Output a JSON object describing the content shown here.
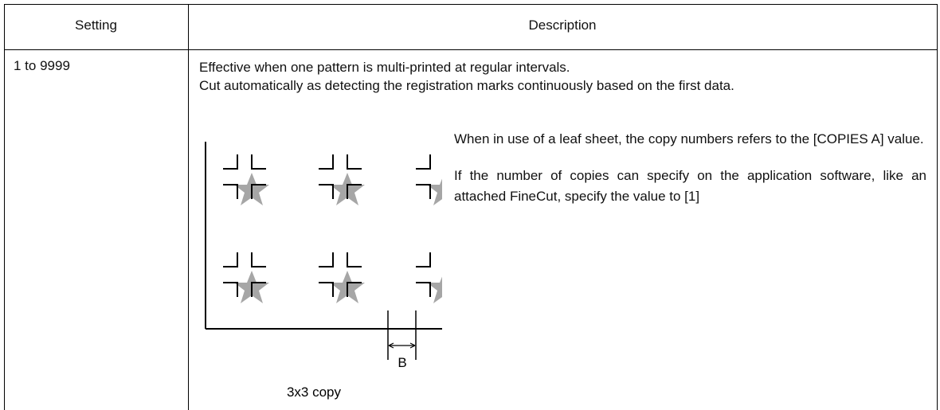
{
  "table": {
    "headers": [
      "Setting",
      "Description"
    ],
    "row": {
      "setting": "1 to 9999",
      "description": [
        "Effective when one pattern is multi-printed at regular intervals.",
        "Cut automatically as detecting the registration marks continuously based on the first data."
      ],
      "figure": {
        "label": "B",
        "caption": "3x3 copy"
      },
      "notes": [
        "When in use of a leaf sheet, the copy numbers refers to the [COPIES A] value.",
        "If the number of copies can specify on the application software, like an attached FineCut, specify the value to [1]"
      ]
    }
  }
}
